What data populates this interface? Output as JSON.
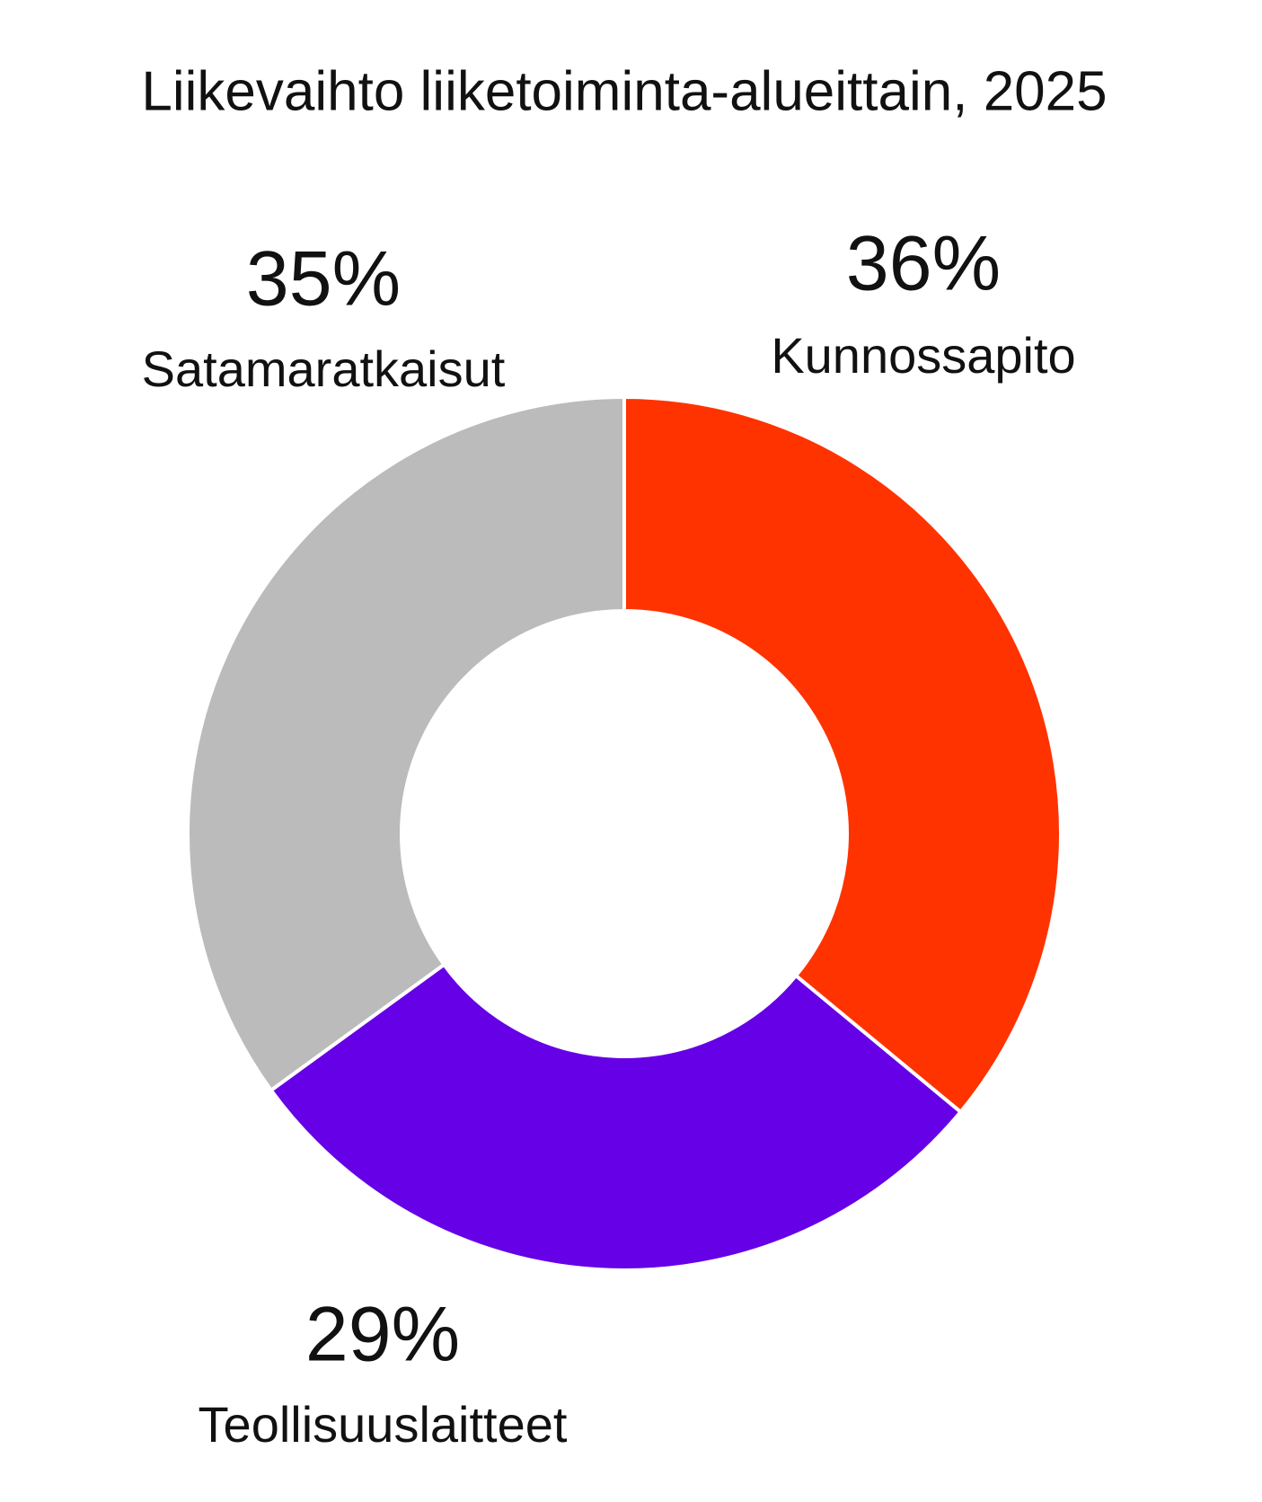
{
  "chart_data": {
    "type": "donut",
    "title": "Liikevaihto liiketoiminta-alueittain, 2025",
    "categories": [
      "Kunnossapito",
      "Teollisuuslaitteet",
      "Satamaratkaisut"
    ],
    "values": [
      36,
      29,
      35
    ],
    "value_labels": [
      "36%",
      "29%",
      "35%"
    ],
    "colors": [
      "#ff3300",
      "#6600e6",
      "#bbbbbb"
    ]
  }
}
